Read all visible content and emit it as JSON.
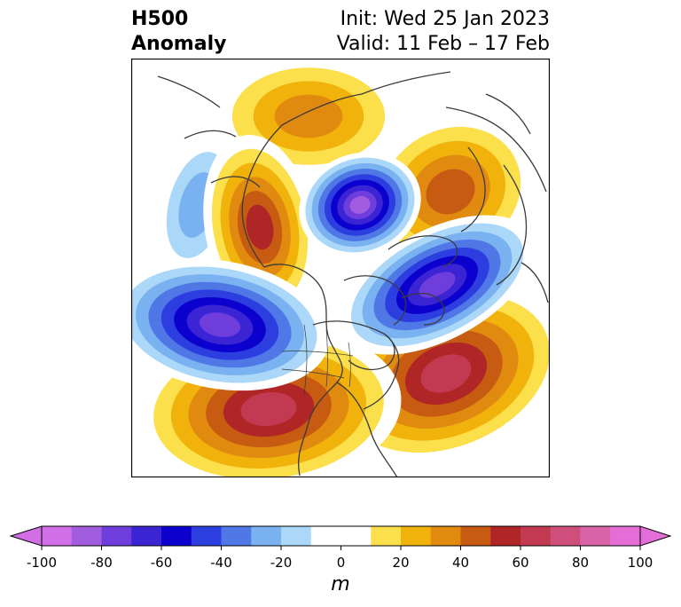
{
  "title": {
    "left_line1": "H500",
    "left_line2": "Anomaly",
    "right_line1": "Init: Wed 25 Jan 2023",
    "right_line2": "Valid: 11 Feb – 17 Feb"
  },
  "colorbar": {
    "unit": "m",
    "min": -100,
    "max": 100,
    "step": 10,
    "ticks": [
      "-100",
      "-80",
      "-60",
      "-40",
      "-20",
      "0",
      "20",
      "40",
      "60",
      "80",
      "100"
    ],
    "tick_values": [
      -100,
      -80,
      -60,
      -40,
      -20,
      0,
      20,
      40,
      60,
      80,
      100
    ],
    "colors": [
      "#d36fe6",
      "#a25ce0",
      "#6f3ddc",
      "#3a24d4",
      "#0b00cd",
      "#2d3ee0",
      "#4f78e6",
      "#7ab1f0",
      "#abd8f8",
      "#ffffff",
      "#ffffff",
      "#fbdf4b",
      "#f0b20b",
      "#e08a10",
      "#c75b12",
      "#b02626",
      "#c23a52",
      "#cf4f7c",
      "#d764a8",
      "#e36ed8"
    ]
  },
  "anomalies": [
    {
      "id": "west-canada-ridge",
      "value": 60
    },
    {
      "id": "polar-low",
      "value": -90
    },
    {
      "id": "north-pacific-trough",
      "value": -80
    },
    {
      "id": "north-atlantic-trough",
      "value": -80
    },
    {
      "id": "atlantic-ridge",
      "value": 70
    },
    {
      "id": "us-southwest-ridge",
      "value": 70
    },
    {
      "id": "siberia-ridge",
      "value": 40
    },
    {
      "id": "eurasia-ridge",
      "value": 50
    },
    {
      "id": "aleutian-low",
      "value": -30
    }
  ]
}
